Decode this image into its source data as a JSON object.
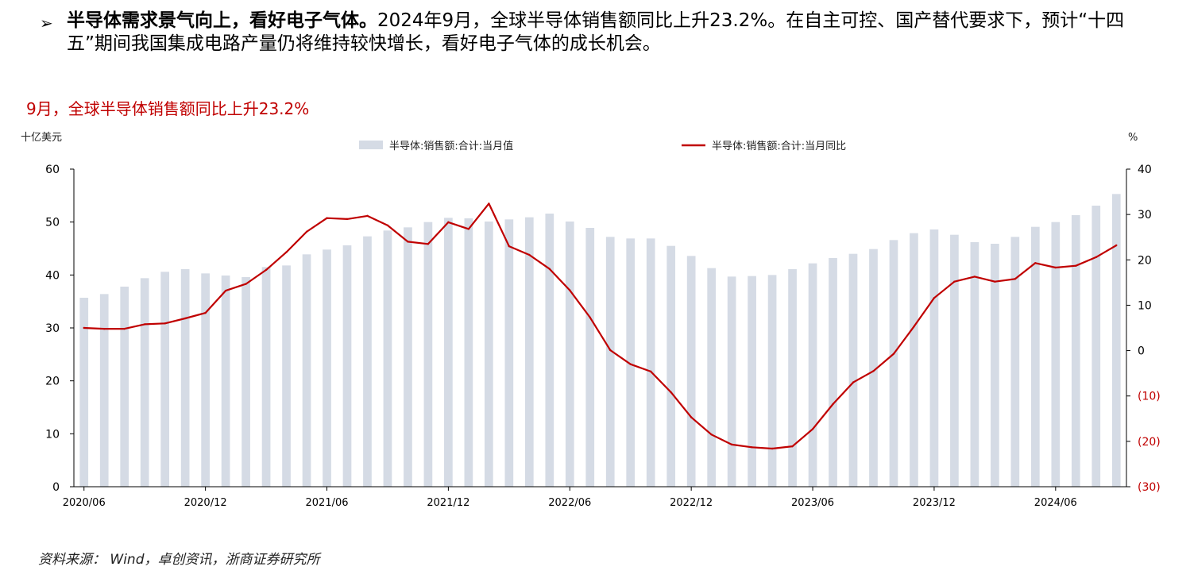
{
  "bullet": {
    "marker": "➢",
    "bold_text": "半导体需求景气向上，看好电子气体。",
    "body_text": "2024年9月，全球半导体销售额同比上升23.2%。在自主可控、国产替代要求下，预计“十四五”期间我国集成电路产量仍将维持较快增长，看好电子气体的成长机会。"
  },
  "chart_heading": "9月，全球半导体销售额同比上升23.2%",
  "source_note": "资料来源： Wind，卓创资讯，浙商证券研究所",
  "colors": {
    "bars": "#d5dbe5",
    "line": "#c00000",
    "negative_tick": "#c00000",
    "heading": "#c00000"
  },
  "chart_data": {
    "type": "bar+line",
    "left_unit": "十亿美元",
    "right_unit": "%",
    "x": [
      "2020/06",
      "2020/07",
      "2020/08",
      "2020/09",
      "2020/10",
      "2020/11",
      "2020/12",
      "2021/01",
      "2021/02",
      "2021/03",
      "2021/04",
      "2021/05",
      "2021/06",
      "2021/07",
      "2021/08",
      "2021/09",
      "2021/10",
      "2021/11",
      "2021/12",
      "2022/01",
      "2022/02",
      "2022/03",
      "2022/04",
      "2022/05",
      "2022/06",
      "2022/07",
      "2022/08",
      "2022/09",
      "2022/10",
      "2022/11",
      "2022/12",
      "2023/01",
      "2023/02",
      "2023/03",
      "2023/04",
      "2023/05",
      "2023/06",
      "2023/07",
      "2023/08",
      "2023/09",
      "2023/10",
      "2023/11",
      "2023/12",
      "2024/01",
      "2024/02",
      "2024/03",
      "2024/04",
      "2024/05",
      "2024/06",
      "2024/07",
      "2024/08",
      "2024/09"
    ],
    "x_tick_labels": [
      "2020/06",
      "2020/12",
      "2021/06",
      "2021/12",
      "2022/06",
      "2022/12",
      "2023/06",
      "2023/12",
      "2024/06"
    ],
    "left_axis": {
      "ylim": [
        0,
        60
      ],
      "ticks": [
        "0",
        "10",
        "20",
        "30",
        "40",
        "50",
        "60"
      ]
    },
    "right_axis": {
      "ylim": [
        -30,
        40
      ],
      "ticks": [
        "(30)",
        "(20)",
        "(10)",
        "0",
        "10",
        "20",
        "30",
        "40"
      ]
    },
    "series": [
      {
        "name": "半导体:销售额:合计:当月值",
        "kind": "bar",
        "axis": "left",
        "values": [
          35.7,
          36.4,
          37.8,
          39.4,
          40.6,
          41.1,
          40.3,
          39.9,
          39.6,
          41.5,
          41.8,
          43.9,
          44.8,
          45.6,
          47.3,
          48.4,
          49.0,
          50.0,
          50.8,
          50.7,
          50.1,
          50.5,
          50.9,
          51.6,
          50.1,
          48.9,
          47.2,
          46.9,
          46.9,
          45.5,
          43.6,
          41.3,
          39.7,
          39.8,
          40.0,
          41.1,
          42.2,
          43.2,
          44.0,
          44.9,
          46.6,
          47.9,
          48.6,
          47.6,
          46.2,
          45.9,
          47.2,
          49.1,
          50.0,
          51.3,
          53.1,
          55.3
        ]
      },
      {
        "name": "半导体:销售额:合计:当月同比",
        "kind": "line",
        "axis": "right",
        "values": [
          5.0,
          4.8,
          4.8,
          5.8,
          6.0,
          7.1,
          8.3,
          13.2,
          14.7,
          17.8,
          21.7,
          26.2,
          29.2,
          29.0,
          29.7,
          27.6,
          24.0,
          23.5,
          28.3,
          26.8,
          32.4,
          23.0,
          21.1,
          18.0,
          13.3,
          7.3,
          0.1,
          -3.0,
          -4.6,
          -9.2,
          -14.7,
          -18.5,
          -20.7,
          -21.3,
          -21.6,
          -21.1,
          -17.3,
          -11.8,
          -7.0,
          -4.5,
          -0.7,
          5.3,
          11.6,
          15.2,
          16.3,
          15.2,
          15.8,
          19.3,
          18.3,
          18.7,
          20.6,
          23.2
        ]
      }
    ],
    "legend_position": "top-center",
    "grid": false
  }
}
